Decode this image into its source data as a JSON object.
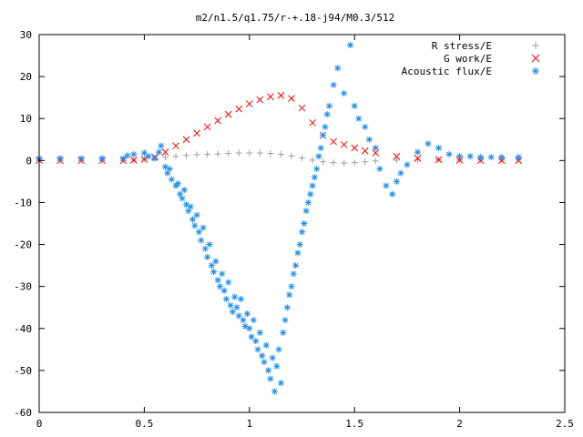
{
  "chart_data": {
    "type": "scatter",
    "title": "m2/n1.5/q1.75/r-+.18-j94/M0.3/512",
    "xlabel": "",
    "ylabel": "",
    "xlim": [
      0,
      2.5
    ],
    "ylim": [
      -60,
      30
    ],
    "x_ticks": [
      "0",
      "0.5",
      "1",
      "1.5",
      "2",
      "2.5"
    ],
    "y_ticks": [
      "30",
      "20",
      "10",
      "0",
      "-10",
      "-20",
      "-30",
      "-40",
      "-50",
      "-60"
    ],
    "grid": false,
    "legend_position": "top-right",
    "series": [
      {
        "name": "R stress/E",
        "marker": "+",
        "color": "#a0a0a0",
        "points": [
          [
            0.0,
            0
          ],
          [
            0.1,
            0
          ],
          [
            0.2,
            0
          ],
          [
            0.3,
            0
          ],
          [
            0.4,
            0
          ],
          [
            0.45,
            0.1
          ],
          [
            0.5,
            0.3
          ],
          [
            0.55,
            0.5
          ],
          [
            0.6,
            0.8
          ],
          [
            0.65,
            1.0
          ],
          [
            0.7,
            1.2
          ],
          [
            0.75,
            1.4
          ],
          [
            0.8,
            1.5
          ],
          [
            0.85,
            1.6
          ],
          [
            0.9,
            1.7
          ],
          [
            0.95,
            1.8
          ],
          [
            1.0,
            1.8
          ],
          [
            1.05,
            1.8
          ],
          [
            1.1,
            1.7
          ],
          [
            1.15,
            1.5
          ],
          [
            1.2,
            1.1
          ],
          [
            1.25,
            0.6
          ],
          [
            1.3,
            0.1
          ],
          [
            1.35,
            -0.3
          ],
          [
            1.4,
            -0.5
          ],
          [
            1.45,
            -0.6
          ],
          [
            1.5,
            -0.5
          ],
          [
            1.55,
            -0.3
          ],
          [
            1.6,
            -0.1
          ],
          [
            1.7,
            0.1
          ],
          [
            1.8,
            0.2
          ],
          [
            1.9,
            0.2
          ],
          [
            2.0,
            0.1
          ],
          [
            2.1,
            0.1
          ],
          [
            2.2,
            0.1
          ],
          [
            2.28,
            0.1
          ]
        ]
      },
      {
        "name": "G work/E",
        "marker": "x",
        "color": "#ff0000",
        "points": [
          [
            0.0,
            0
          ],
          [
            0.1,
            0
          ],
          [
            0.2,
            0
          ],
          [
            0.3,
            0
          ],
          [
            0.4,
            0
          ],
          [
            0.45,
            0.1
          ],
          [
            0.5,
            0.3
          ],
          [
            0.55,
            0.8
          ],
          [
            0.6,
            2.0
          ],
          [
            0.65,
            3.5
          ],
          [
            0.7,
            5.0
          ],
          [
            0.75,
            6.5
          ],
          [
            0.8,
            8.0
          ],
          [
            0.85,
            9.5
          ],
          [
            0.9,
            11.0
          ],
          [
            0.95,
            12.3
          ],
          [
            1.0,
            13.5
          ],
          [
            1.05,
            14.5
          ],
          [
            1.1,
            15.2
          ],
          [
            1.15,
            15.5
          ],
          [
            1.2,
            14.8
          ],
          [
            1.25,
            12.5
          ],
          [
            1.3,
            9.0
          ],
          [
            1.35,
            6.0
          ],
          [
            1.4,
            4.5
          ],
          [
            1.45,
            3.8
          ],
          [
            1.5,
            3.0
          ],
          [
            1.55,
            2.3
          ],
          [
            1.6,
            1.8
          ],
          [
            1.7,
            1.0
          ],
          [
            1.8,
            0.5
          ],
          [
            1.9,
            0.2
          ],
          [
            2.0,
            0.1
          ],
          [
            2.1,
            0
          ],
          [
            2.2,
            0
          ],
          [
            2.28,
            0
          ]
        ]
      },
      {
        "name": "Acoustic flux/E",
        "marker": "*",
        "color": "#1f8ef0",
        "points": [
          [
            0.0,
            0.5
          ],
          [
            0.1,
            0.5
          ],
          [
            0.2,
            0.5
          ],
          [
            0.3,
            0.5
          ],
          [
            0.4,
            0.5
          ],
          [
            0.42,
            1.2
          ],
          [
            0.45,
            1.5
          ],
          [
            0.5,
            1.8
          ],
          [
            0.52,
            1.0
          ],
          [
            0.55,
            0.5
          ],
          [
            0.57,
            2.0
          ],
          [
            0.58,
            3.5
          ],
          [
            0.6,
            -1.5
          ],
          [
            0.61,
            -3.0
          ],
          [
            0.62,
            -2.0
          ],
          [
            0.63,
            -4.5
          ],
          [
            0.65,
            -6.0
          ],
          [
            0.66,
            -5.5
          ],
          [
            0.67,
            -8.0
          ],
          [
            0.68,
            -9.0
          ],
          [
            0.69,
            -7.0
          ],
          [
            0.7,
            -10.5
          ],
          [
            0.71,
            -12.0
          ],
          [
            0.72,
            -11.0
          ],
          [
            0.73,
            -14.0
          ],
          [
            0.74,
            -15.5
          ],
          [
            0.75,
            -13.0
          ],
          [
            0.76,
            -17.0
          ],
          [
            0.77,
            -19.0
          ],
          [
            0.78,
            -16.0
          ],
          [
            0.79,
            -21.0
          ],
          [
            0.8,
            -23.0
          ],
          [
            0.81,
            -20.0
          ],
          [
            0.82,
            -25.0
          ],
          [
            0.83,
            -26.5
          ],
          [
            0.84,
            -24.0
          ],
          [
            0.85,
            -28.5
          ],
          [
            0.86,
            -30.0
          ],
          [
            0.87,
            -27.0
          ],
          [
            0.88,
            -31.0
          ],
          [
            0.89,
            -33.0
          ],
          [
            0.9,
            -29.0
          ],
          [
            0.91,
            -34.5
          ],
          [
            0.92,
            -36.0
          ],
          [
            0.93,
            -32.5
          ],
          [
            0.94,
            -35.0
          ],
          [
            0.95,
            -37.0
          ],
          [
            0.96,
            -33.0
          ],
          [
            0.97,
            -38.0
          ],
          [
            0.98,
            -39.5
          ],
          [
            0.99,
            -36.5
          ],
          [
            1.0,
            -40.0
          ],
          [
            1.01,
            -42.0
          ],
          [
            1.02,
            -38.0
          ],
          [
            1.03,
            -43.0
          ],
          [
            1.04,
            -45.0
          ],
          [
            1.05,
            -41.0
          ],
          [
            1.06,
            -46.5
          ],
          [
            1.07,
            -48.0
          ],
          [
            1.08,
            -44.0
          ],
          [
            1.09,
            -50.0
          ],
          [
            1.1,
            -52.0
          ],
          [
            1.11,
            -47.0
          ],
          [
            1.12,
            -55.0
          ],
          [
            1.13,
            -49.0
          ],
          [
            1.14,
            -45.0
          ],
          [
            1.15,
            -53.0
          ],
          [
            1.16,
            -41.0
          ],
          [
            1.17,
            -38.0
          ],
          [
            1.18,
            -35.0
          ],
          [
            1.19,
            -32.0
          ],
          [
            1.2,
            -30.0
          ],
          [
            1.21,
            -27.0
          ],
          [
            1.22,
            -25.0
          ],
          [
            1.23,
            -22.0
          ],
          [
            1.24,
            -20.0
          ],
          [
            1.25,
            -17.0
          ],
          [
            1.26,
            -15.0
          ],
          [
            1.27,
            -12.0
          ],
          [
            1.28,
            -10.0
          ],
          [
            1.29,
            -8.0
          ],
          [
            1.3,
            -6.0
          ],
          [
            1.31,
            -4.0
          ],
          [
            1.32,
            -2.0
          ],
          [
            1.33,
            1.0
          ],
          [
            1.34,
            3.0
          ],
          [
            1.35,
            6.0
          ],
          [
            1.36,
            8.0
          ],
          [
            1.37,
            11.0
          ],
          [
            1.38,
            13.0
          ],
          [
            1.4,
            18.0
          ],
          [
            1.42,
            22.0
          ],
          [
            1.45,
            16.0
          ],
          [
            1.48,
            27.5
          ],
          [
            1.5,
            13.0
          ],
          [
            1.52,
            10.0
          ],
          [
            1.55,
            8.0
          ],
          [
            1.57,
            5.0
          ],
          [
            1.6,
            3.0
          ],
          [
            1.62,
            -2.0
          ],
          [
            1.65,
            -6.0
          ],
          [
            1.68,
            -8.0
          ],
          [
            1.7,
            -5.0
          ],
          [
            1.72,
            -3.0
          ],
          [
            1.75,
            -1.0
          ],
          [
            1.8,
            2.0
          ],
          [
            1.85,
            4.0
          ],
          [
            1.9,
            3.0
          ],
          [
            1.95,
            1.5
          ],
          [
            2.0,
            1.0
          ],
          [
            2.05,
            1.0
          ],
          [
            2.1,
            0.8
          ],
          [
            2.15,
            0.8
          ],
          [
            2.2,
            0.8
          ],
          [
            2.28,
            0.8
          ]
        ]
      }
    ]
  }
}
